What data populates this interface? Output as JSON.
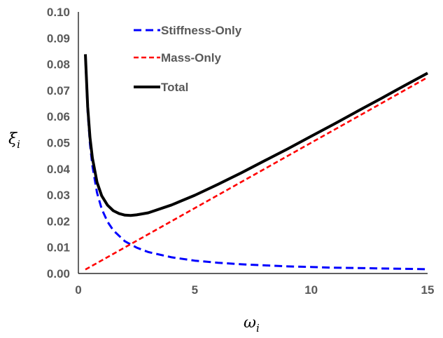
{
  "chart_data": {
    "type": "line",
    "title": "",
    "xlabel": "ωi",
    "ylabel": "ξi",
    "xlim": [
      0,
      15
    ],
    "ylim": [
      0,
      0.1
    ],
    "xticks": [
      "0",
      "5",
      "10",
      "15"
    ],
    "yticks": [
      "0.00",
      "0.01",
      "0.02",
      "0.03",
      "0.04",
      "0.05",
      "0.06",
      "0.07",
      "0.08",
      "0.09",
      "0.10"
    ],
    "grid": false,
    "legend_position": "top-center",
    "series": [
      {
        "name": "Stiffness-Only",
        "color": "#0000ff",
        "dash": "dashed",
        "x": [
          0.3,
          0.4,
          0.5,
          0.6,
          0.8,
          1.0,
          1.25,
          1.5,
          2.0,
          2.5,
          3,
          4,
          5,
          6,
          7,
          8,
          9,
          10,
          11,
          12,
          13,
          14,
          15
        ],
        "y": [
          0.0823,
          0.0617,
          0.0494,
          0.0412,
          0.0309,
          0.0247,
          0.0198,
          0.0165,
          0.0123,
          0.0099,
          0.0082,
          0.0062,
          0.0049,
          0.0041,
          0.0035,
          0.0031,
          0.0027,
          0.0025,
          0.0022,
          0.0021,
          0.0019,
          0.0018,
          0.0016
        ]
      },
      {
        "name": "Mass-Only",
        "color": "#ff0000",
        "dash": "dashed",
        "x": [
          0.3,
          15
        ],
        "y": [
          0.0015,
          0.075
        ]
      },
      {
        "name": "Total",
        "color": "#000000",
        "dash": "solid",
        "x": [
          0.3,
          0.4,
          0.5,
          0.6,
          0.8,
          1.0,
          1.25,
          1.5,
          1.75,
          2.0,
          2.25,
          2.5,
          3,
          4,
          5,
          6,
          7,
          8,
          9,
          10,
          11,
          12,
          13,
          14,
          15
        ],
        "y": [
          0.0838,
          0.0637,
          0.0519,
          0.0442,
          0.0349,
          0.0297,
          0.0261,
          0.024,
          0.0229,
          0.0223,
          0.0222,
          0.0224,
          0.0232,
          0.0262,
          0.0299,
          0.0341,
          0.0385,
          0.0431,
          0.0477,
          0.0525,
          0.0572,
          0.0621,
          0.0669,
          0.0718,
          0.0766
        ]
      }
    ]
  }
}
